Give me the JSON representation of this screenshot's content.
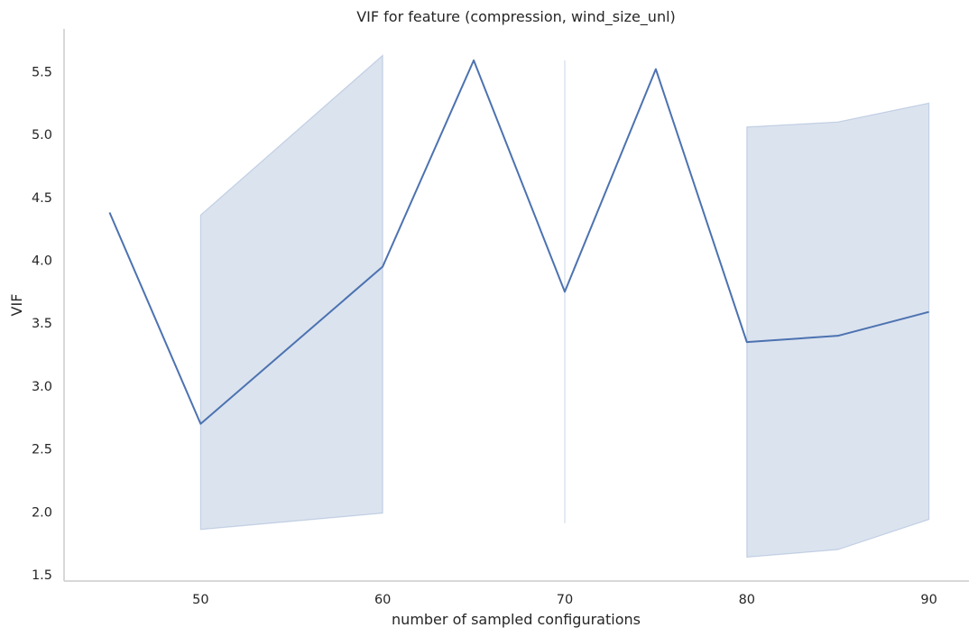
{
  "chart_data": {
    "type": "line",
    "title": "VIF for feature (compression, wind_size_unl)",
    "xlabel": "number of sampled configurations",
    "ylabel": "VIF",
    "xlim": [
      42.5,
      92.2
    ],
    "ylim": [
      1.45,
      5.84
    ],
    "xticks": [
      50,
      60,
      70,
      80,
      90
    ],
    "yticks": [
      1.5,
      2.0,
      2.5,
      3.0,
      3.5,
      4.0,
      4.5,
      5.0,
      5.5
    ],
    "grid": false,
    "colors": {
      "line": "#4c72b0",
      "band": "#4c72b0"
    },
    "series": [
      {
        "x": [
          45,
          50,
          60,
          65,
          70,
          75,
          80,
          85,
          90
        ],
        "y": [
          4.38,
          2.7,
          3.95,
          5.59,
          3.75,
          5.52,
          3.35,
          3.4,
          3.59
        ],
        "ci_low": [
          4.38,
          1.86,
          1.99,
          5.59,
          1.91,
          5.52,
          1.64,
          1.7,
          1.94
        ],
        "ci_high": [
          4.38,
          4.36,
          5.63,
          5.59,
          5.59,
          5.52,
          5.06,
          5.1,
          5.25
        ]
      }
    ]
  }
}
